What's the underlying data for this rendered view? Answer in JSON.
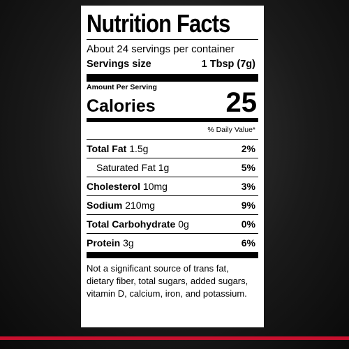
{
  "title": "Nutrition Facts",
  "servings_per_container": "About 24 servings per container",
  "serving_size_label": "Servings size",
  "serving_size_value": "1 Tbsp (7g)",
  "amount_per_serving": "Amount Per Serving",
  "calories_label": "Calories",
  "calories_value": "25",
  "daily_value_header": "% Daily Value*",
  "nutrients": [
    {
      "name": "Total Fat",
      "amount": "1.5g",
      "pct": "2%"
    },
    {
      "name": "Saturated Fat",
      "amount": "1g",
      "pct": "5%"
    },
    {
      "name": "Cholesterol",
      "amount": "10mg",
      "pct": "3%"
    },
    {
      "name": "Sodium",
      "amount": "210mg",
      "pct": "9%"
    },
    {
      "name": "Total Carbohydrate",
      "amount": "0g",
      "pct": "0%"
    },
    {
      "name": "Protein",
      "amount": "3g",
      "pct": "6%"
    }
  ],
  "footnote": "Not a significant source of trans fat, dietary fiber, total sugars, added sugars, vitamin D, calcium, iron, and potassium.",
  "colors": {
    "background": "#1a1a1a",
    "stripe": "#c8102e",
    "label": "#ffffff"
  }
}
